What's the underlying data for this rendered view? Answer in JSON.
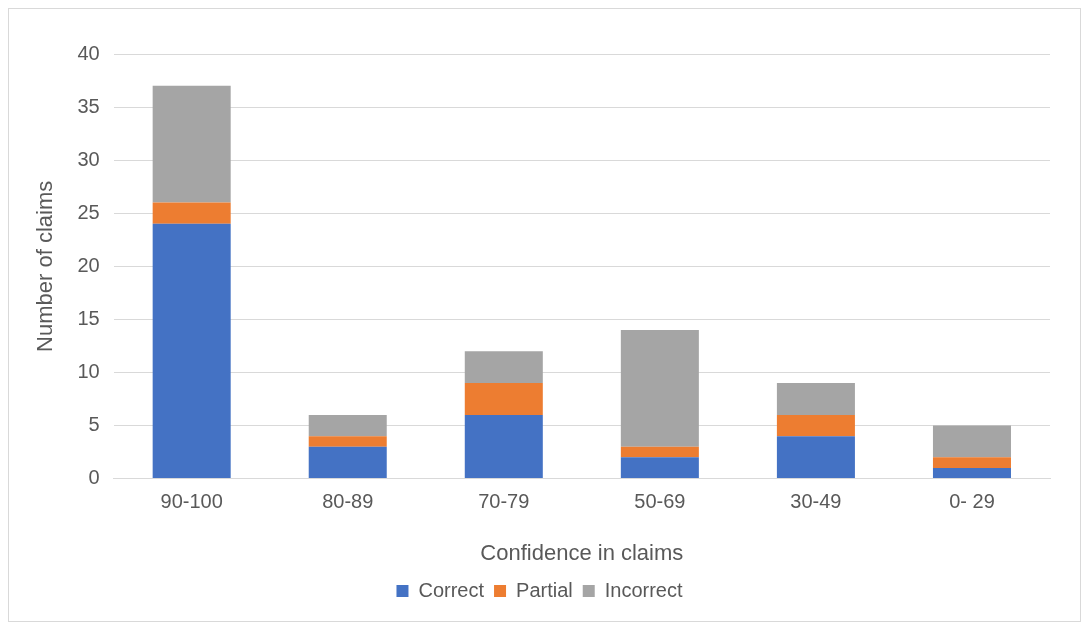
{
  "chart_data": {
    "type": "bar",
    "stacked": true,
    "xlabel": "Confidence in claims",
    "ylabel": "Number of claims",
    "categories": [
      "90-100",
      "80-89",
      "70-79",
      "50-69",
      "30-49",
      "0- 29"
    ],
    "series": [
      {
        "name": "Correct",
        "color": "#4472c4",
        "values": [
          24,
          3,
          6,
          2,
          4,
          1
        ]
      },
      {
        "name": "Partial",
        "color": "#ed7d31",
        "values": [
          2,
          1,
          3,
          1,
          2,
          1
        ]
      },
      {
        "name": "Incorrect",
        "color": "#a5a5a5",
        "values": [
          11,
          2,
          3,
          11,
          3,
          3
        ]
      }
    ],
    "ylim": [
      0,
      40
    ],
    "yticks": [
      0,
      5,
      10,
      15,
      20,
      25,
      30,
      35,
      40
    ],
    "grid": "y",
    "legend": "bottom"
  }
}
